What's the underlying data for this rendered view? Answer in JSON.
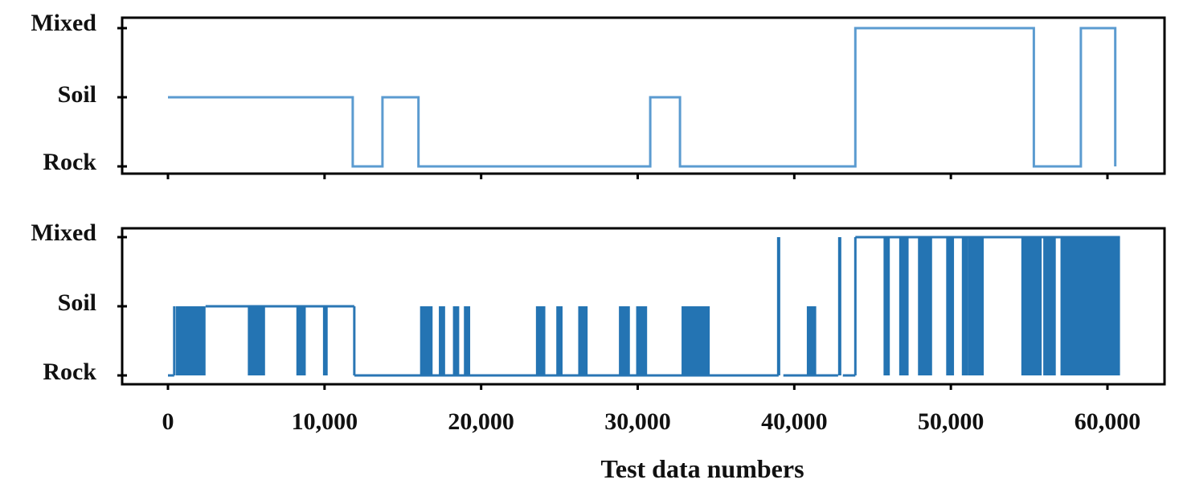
{
  "chart_data": [
    {
      "type": "line",
      "panel": "top",
      "y_categories": [
        "Rock",
        "Soil",
        "Mixed"
      ],
      "x_ticks": [
        "0",
        "10,000",
        "20,000",
        "30,000",
        "40,000",
        "50,000",
        "60,000"
      ],
      "xlim": [
        0,
        60800
      ],
      "series": [
        {
          "color": "#5b9bd0",
          "x": [
            0,
            11800,
            11800,
            13700,
            13700,
            16000,
            16000,
            30800,
            30800,
            32700,
            32700,
            43900,
            43900,
            55300,
            55300,
            58300,
            58300,
            60500,
            60500
          ],
          "y": [
            "Soil",
            "Soil",
            "Rock",
            "Rock",
            "Soil",
            "Soil",
            "Rock",
            "Rock",
            "Soil",
            "Soil",
            "Rock",
            "Rock",
            "Mixed",
            "Mixed",
            "Rock",
            "Rock",
            "Mixed",
            "Mixed",
            "Rock"
          ]
        }
      ]
    },
    {
      "type": "line",
      "panel": "bottom",
      "y_categories": [
        "Rock",
        "Soil",
        "Mixed"
      ],
      "x_ticks": [
        "0",
        "10,000",
        "20,000",
        "30,000",
        "40,000",
        "50,000",
        "60,000"
      ],
      "xlim": [
        0,
        60800
      ],
      "series": [
        {
          "color": "#2a76b4",
          "baseline_segments": [
            {
              "from": 0,
              "to": 400,
              "level": "Rock"
            },
            {
              "from": 2400,
              "to": 11900,
              "level": "Soil"
            },
            {
              "from": 11900,
              "to": 39000,
              "level": "Rock"
            },
            {
              "from": 39300,
              "to": 42800,
              "level": "Rock"
            },
            {
              "from": 43100,
              "to": 43900,
              "level": "Rock"
            },
            {
              "from": 43900,
              "to": 60800,
              "level": "Mixed"
            }
          ],
          "soil_switching_bands": [
            [
              500,
              2400
            ],
            [
              5100,
              6200
            ],
            [
              8200,
              8800
            ],
            [
              9900,
              10200
            ],
            [
              16100,
              16900
            ],
            [
              17300,
              17700
            ],
            [
              18200,
              18600
            ],
            [
              18900,
              19300
            ],
            [
              23500,
              24100
            ],
            [
              24800,
              25200
            ],
            [
              26200,
              26800
            ],
            [
              28800,
              29500
            ],
            [
              29900,
              30600
            ],
            [
              32800,
              34600
            ],
            [
              40800,
              41400
            ]
          ],
          "mixed_switching_bands": [
            [
              45700,
              46100
            ],
            [
              46700,
              47300
            ],
            [
              47900,
              48800
            ],
            [
              49700,
              50200
            ],
            [
              50700,
              51100
            ],
            [
              51100,
              52100
            ],
            [
              54500,
              55800
            ],
            [
              55900,
              56700
            ],
            [
              57000,
              60800
            ]
          ],
          "mixed_spikes": [
            39000,
            42900
          ]
        }
      ]
    }
  ],
  "axis": {
    "y_label_top": "Mixed",
    "y_label_mid": "Soil",
    "y_label_bottom": "Rock",
    "x_title": "Test data numbers"
  }
}
